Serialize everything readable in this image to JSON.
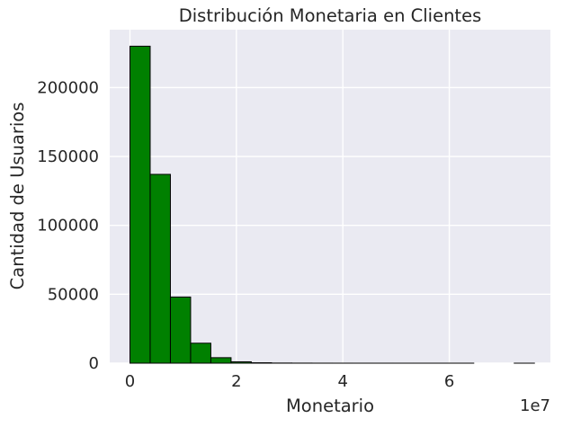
{
  "chart_data": {
    "type": "bar",
    "title": "Distribución Monetaria en Clientes",
    "xlabel": "Monetario",
    "ylabel": "Cantidad de Usuarios",
    "x_offset_label": "1e7",
    "xlim": [
      -0.38,
      7.9
    ],
    "ylim": [
      0,
      242000
    ],
    "xticks": [
      0,
      2,
      4,
      6
    ],
    "xtick_labels": [
      "0",
      "2",
      "4",
      "6"
    ],
    "yticks": [
      0,
      50000,
      100000,
      150000,
      200000
    ],
    "ytick_labels": [
      "0",
      "50000",
      "100000",
      "150000",
      "200000"
    ],
    "grid": true,
    "colors": {
      "bar_fill": "#008000",
      "bar_edge": "#000000",
      "plot_background": "#eaeaf2",
      "grid": "#ffffff",
      "text": "#262626"
    },
    "bins": [
      {
        "x0": 0.0,
        "x1": 0.38,
        "value": 230000
      },
      {
        "x0": 0.38,
        "x1": 0.76,
        "value": 137000
      },
      {
        "x0": 0.76,
        "x1": 1.14,
        "value": 48000
      },
      {
        "x0": 1.14,
        "x1": 1.52,
        "value": 14500
      },
      {
        "x0": 1.52,
        "x1": 1.9,
        "value": 4000
      },
      {
        "x0": 1.9,
        "x1": 2.28,
        "value": 1000
      },
      {
        "x0": 2.28,
        "x1": 2.66,
        "value": 300
      },
      {
        "x0": 2.66,
        "x1": 3.04,
        "value": 100
      },
      {
        "x0": 3.04,
        "x1": 3.42,
        "value": 50
      },
      {
        "x0": 3.42,
        "x1": 3.8,
        "value": 20
      },
      {
        "x0": 3.8,
        "x1": 4.18,
        "value": 10
      },
      {
        "x0": 4.18,
        "x1": 4.56,
        "value": 5
      },
      {
        "x0": 4.56,
        "x1": 4.94,
        "value": 3
      },
      {
        "x0": 4.94,
        "x1": 5.32,
        "value": 2
      },
      {
        "x0": 5.32,
        "x1": 5.7,
        "value": 1
      },
      {
        "x0": 5.7,
        "x1": 6.08,
        "value": 1
      },
      {
        "x0": 6.08,
        "x1": 6.46,
        "value": 1
      },
      {
        "x0": 6.46,
        "x1": 6.84,
        "value": 0
      },
      {
        "x0": 6.84,
        "x1": 7.22,
        "value": 0
      },
      {
        "x0": 7.22,
        "x1": 7.6,
        "value": 1
      }
    ]
  }
}
